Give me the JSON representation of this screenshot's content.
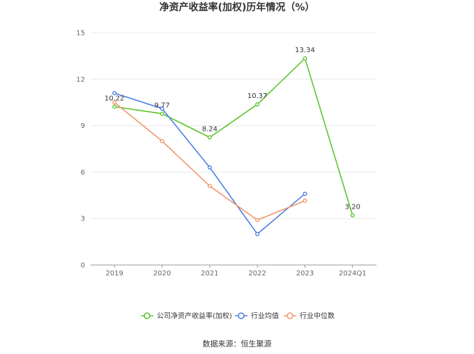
{
  "chart_data": {
    "type": "line",
    "title": "净资产收益率(加权)历年情况（%）",
    "categories": [
      "2019",
      "2020",
      "2021",
      "2022",
      "2023",
      "2024Q1"
    ],
    "y_ticks": [
      "0",
      "3",
      "6",
      "9",
      "12",
      "15"
    ],
    "ylim": [
      0,
      15
    ],
    "grid": true,
    "legend_position": "bottom",
    "series": [
      {
        "name": "公司净资产收益率(加权)",
        "color": "#5ec42e",
        "values": [
          10.22,
          9.77,
          8.24,
          10.37,
          13.34,
          3.2
        ],
        "labels": [
          "10.22",
          "9.77",
          "8.24",
          "10.37",
          "13.34",
          "3.20"
        ]
      },
      {
        "name": "行业均值",
        "color": "#4a7fe0",
        "values": [
          11.1,
          10.1,
          6.3,
          2.0,
          4.6,
          null
        ]
      },
      {
        "name": "行业中位数",
        "color": "#f0966c",
        "values": [
          10.5,
          8.0,
          5.1,
          2.9,
          4.15,
          null
        ]
      }
    ],
    "source": "数据来源：恒生聚源"
  }
}
